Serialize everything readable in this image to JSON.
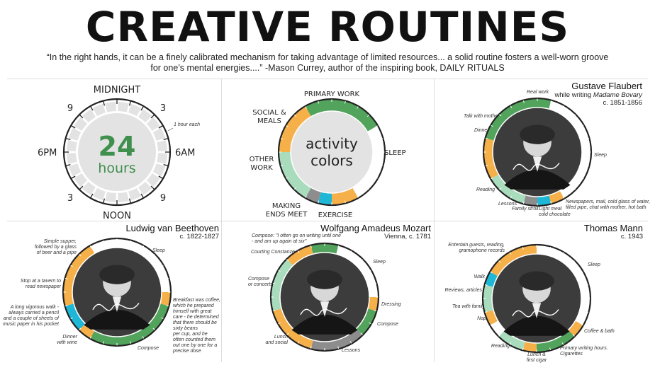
{
  "title": "CREATIVE ROUTINES",
  "quote": "“In the right hands, it can be a finely calibrated mechanism for taking advantage of limited resources... a solid routine fosters a well-worn groove for one’s mental energies....” -Mason Currey, author of the inspiring book, DAILY RITUALS",
  "colors": {
    "primary_work": "#52a35c",
    "social_meals": "#f6b04a",
    "other_work": "#a9dcbc",
    "making_ends_meet": "#8d8d8d",
    "exercise": "#1fb7d6",
    "sleep": "#ffffff",
    "ring_outline": "#222222"
  },
  "clock": {
    "midnight": "MIDNIGHT",
    "noon": "NOON",
    "h9_top": "9",
    "h3_top": "3",
    "h3_bottom": "3",
    "h9_bottom": "9",
    "pm6": "6PM",
    "am6": "6AM",
    "center_big": "24",
    "center_small": "hours",
    "note": "1 hour each"
  },
  "legend": {
    "center_line1": "activity",
    "center_line2": "colors",
    "primary_work": "PRIMARY WORK",
    "social_line1": "SOCIAL &",
    "social_line2": "MEALS",
    "other_line1": "OTHER",
    "other_line2": "WORK",
    "making_line1": "MAKING",
    "making_line2": "ENDS MEET",
    "exercise": "EXERCISE",
    "sleep": "SLEEP"
  },
  "people": {
    "flaubert": {
      "name": "Gustave Flaubert",
      "work": "Madame Bovary",
      "work_prefix": "while writing ",
      "date": "c. 1851-1856",
      "labels": {
        "real_work": "Real work",
        "talk": "Talk with mother",
        "dinner": "Dinner",
        "reading": "Reading",
        "lessons": "Lessons",
        "family_stroll": "Family stroll",
        "light_meal_1": "Light meal",
        "light_meal_2": "cold chocolate",
        "news_1": "Newspapers, mail, cold glass of water,",
        "news_2": "filled pipe, chat with mother, hot bath",
        "sleep": "Sleep"
      },
      "segments": [
        {
          "start": 19,
          "end": 1,
          "activity": "primary_work"
        },
        {
          "start": 1,
          "end": 10,
          "activity": "sleep"
        },
        {
          "start": 10,
          "end": 11,
          "activity": "social_meals"
        },
        {
          "start": 11,
          "end": 12,
          "activity": "exercise"
        },
        {
          "start": 12,
          "end": 13,
          "activity": "making_ends_meet"
        },
        {
          "start": 13,
          "end": 15,
          "activity": "other_work"
        },
        {
          "start": 15,
          "end": 16,
          "activity": "other_work"
        },
        {
          "start": 16,
          "end": 17,
          "activity": "social_meals"
        },
        {
          "start": 17,
          "end": 19,
          "activity": "social_meals"
        }
      ]
    },
    "beethoven": {
      "name": "Ludwig van Beethoven",
      "date": "c. 1822-1827",
      "labels": {
        "supper_1": "Simple supper,",
        "supper_2": "followed by a glass",
        "supper_3": "of beer and a pipe",
        "sleep": "Sleep",
        "tavern_1": "Stop at a tavern to",
        "tavern_2": "read newspaper",
        "walk_1": "A long vigorous walk -",
        "walk_2": "always carried a pencil",
        "walk_3": "and a couple of sheets of",
        "walk_4": "music paper in his pocket",
        "dinner_1": "Dinner",
        "dinner_2": "with wine",
        "breakfast_1": "Breakfast was coffee,",
        "breakfast_2": "which he prepared",
        "breakfast_3": "himself with great",
        "breakfast_4": "care - he determined",
        "breakfast_5": "that there should be",
        "breakfast_6": "sixty beans",
        "breakfast_7": "per cup, and he",
        "breakfast_8": "often counted them",
        "breakfast_9": "out one by one for a",
        "breakfast_10": "precise dose",
        "compose": "Compose"
      },
      "segments": [
        {
          "start": 22,
          "end": 6,
          "activity": "sleep"
        },
        {
          "start": 6,
          "end": 7,
          "activity": "social_meals"
        },
        {
          "start": 7,
          "end": 14,
          "activity": "primary_work"
        },
        {
          "start": 14,
          "end": 15,
          "activity": "social_meals"
        },
        {
          "start": 15,
          "end": 17,
          "activity": "exercise"
        },
        {
          "start": 17,
          "end": 18,
          "activity": "social_meals"
        },
        {
          "start": 18,
          "end": 20,
          "activity": "social_meals"
        },
        {
          "start": 20,
          "end": 22,
          "activity": "social_meals"
        }
      ]
    },
    "mozart": {
      "name": "Wolfgang Amadeus Mozart",
      "date": "Vienna, c. 1781",
      "labels": {
        "compose_quote_1": "Compose: \"I often go on writing until one",
        "compose_quote_2": "- and am up again at six\"",
        "courting": "Courting Constanze",
        "sleep": "Sleep",
        "compose_concerts_1": "Compose",
        "compose_concerts_2": "or concerts",
        "dressing": "Dressing",
        "compose": "Compose",
        "lunch_1": "Lunch",
        "lunch_2": "and social",
        "lessons": "Lessons"
      },
      "segments": [
        {
          "start": 23,
          "end": 1,
          "activity": "primary_work"
        },
        {
          "start": 1,
          "end": 6,
          "activity": "sleep"
        },
        {
          "start": 6,
          "end": 7,
          "activity": "social_meals"
        },
        {
          "start": 7,
          "end": 9,
          "activity": "primary_work"
        },
        {
          "start": 9,
          "end": 13,
          "activity": "making_ends_meet"
        },
        {
          "start": 13,
          "end": 17,
          "activity": "social_meals"
        },
        {
          "start": 17,
          "end": 21,
          "activity": "other_work"
        },
        {
          "start": 21,
          "end": 23,
          "activity": "social_meals"
        }
      ]
    },
    "mann": {
      "name": "Thomas Mann",
      "date": "c. 1943",
      "labels": {
        "entertain_1": "Entertain guests, reading,",
        "entertain_2": "gramophone records",
        "sleep": "Sleep",
        "walk": "Walk",
        "reviews": "Reviews, articles",
        "tea": "Tea with family",
        "nap": "Nap",
        "coffee": "Coffee & bath",
        "reading": "Reading",
        "lunch_1": "Lunch &",
        "lunch_2": "first cigar",
        "primary_1": "Primary writing hours.",
        "primary_2": "Cigarettes"
      },
      "segments": [
        {
          "start": 0,
          "end": 8,
          "activity": "sleep"
        },
        {
          "start": 8,
          "end": 9,
          "activity": "social_meals"
        },
        {
          "start": 9,
          "end": 12,
          "activity": "primary_work"
        },
        {
          "start": 12,
          "end": 13,
          "activity": "social_meals"
        },
        {
          "start": 13,
          "end": 15,
          "activity": "other_work"
        },
        {
          "start": 15,
          "end": 16,
          "activity": "sleep"
        },
        {
          "start": 16,
          "end": 17,
          "activity": "social_meals"
        },
        {
          "start": 17,
          "end": 19,
          "activity": "other_work"
        },
        {
          "start": 19,
          "end": 20,
          "activity": "exercise"
        },
        {
          "start": 20,
          "end": 24,
          "activity": "social_meals"
        }
      ]
    }
  },
  "legend_segments": [
    {
      "start": 22,
      "end": 4,
      "activity": "primary_work"
    },
    {
      "start": 4,
      "end": 10,
      "activity": "sleep"
    },
    {
      "start": 10,
      "end": 12,
      "activity": "social_meals"
    },
    {
      "start": 12,
      "end": 13,
      "activity": "exercise"
    },
    {
      "start": 13,
      "end": 14,
      "activity": "making_ends_meet"
    },
    {
      "start": 14,
      "end": 18,
      "activity": "other_work"
    },
    {
      "start": 18,
      "end": 22,
      "activity": "social_meals"
    }
  ]
}
